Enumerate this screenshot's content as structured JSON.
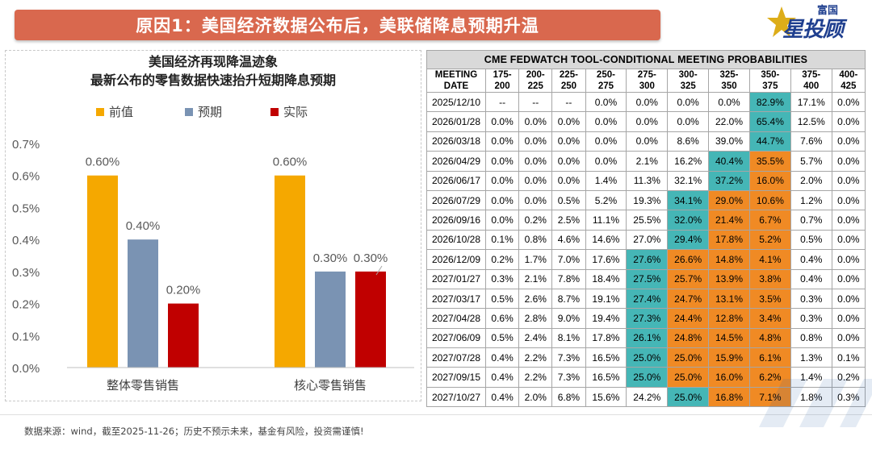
{
  "header": {
    "title": "原因1：美国经济数据公布后，美联储降息预期升温",
    "logo_small": "富国",
    "logo_big": "星投顾"
  },
  "chart_data": {
    "type": "bar",
    "title": "美国经济再现降温迹象",
    "subtitle": "最新公布的零售数据快速抬升短期降息预期",
    "categories": [
      "整体零售销售",
      "核心零售销售"
    ],
    "series": [
      {
        "name": "前值",
        "color": "#f5a800",
        "values": [
          0.6,
          0.6
        ]
      },
      {
        "name": "预期",
        "color": "#7a93b3",
        "values": [
          0.4,
          0.3
        ]
      },
      {
        "name": "实际",
        "color": "#c00000",
        "values": [
          0.2,
          0.3
        ]
      }
    ],
    "data_labels": [
      [
        "0.60%",
        "0.40%",
        "0.20%"
      ],
      [
        "0.60%",
        "0.30%",
        "0.30%"
      ]
    ],
    "ylim": [
      0,
      0.7
    ],
    "yticks": [
      "0.0%",
      "0.1%",
      "0.2%",
      "0.3%",
      "0.4%",
      "0.5%",
      "0.6%",
      "0.7%"
    ],
    "legend_position": "top",
    "grid": false
  },
  "fedwatch": {
    "caption": "CME FEDWATCH TOOL-CONDITIONAL MEETING PROBABILITIES",
    "header_first": [
      "MEETING",
      "DATE"
    ],
    "columns": [
      [
        "175-",
        "200"
      ],
      [
        "200-",
        "225"
      ],
      [
        "225-",
        "250"
      ],
      [
        "250-",
        "275"
      ],
      [
        "275-",
        "300"
      ],
      [
        "300-",
        "325"
      ],
      [
        "325-",
        "350"
      ],
      [
        "350-",
        "375"
      ],
      [
        "375-",
        "400"
      ],
      [
        "400-",
        "425"
      ]
    ],
    "rows": [
      {
        "date": "2025/12/10",
        "values": [
          "--",
          "--",
          "--",
          "0.0%",
          "0.0%",
          "0.0%",
          "0.0%",
          "82.9%",
          "17.1%",
          "0.0%"
        ]
      },
      {
        "date": "2026/01/28",
        "values": [
          "0.0%",
          "0.0%",
          "0.0%",
          "0.0%",
          "0.0%",
          "0.0%",
          "22.0%",
          "65.4%",
          "12.5%",
          "0.0%"
        ]
      },
      {
        "date": "2026/03/18",
        "values": [
          "0.0%",
          "0.0%",
          "0.0%",
          "0.0%",
          "0.0%",
          "8.6%",
          "39.0%",
          "44.7%",
          "7.6%",
          "0.0%"
        ]
      },
      {
        "date": "2026/04/29",
        "values": [
          "0.0%",
          "0.0%",
          "0.0%",
          "0.0%",
          "2.1%",
          "16.2%",
          "40.4%",
          "35.5%",
          "5.7%",
          "0.0%"
        ]
      },
      {
        "date": "2026/06/17",
        "values": [
          "0.0%",
          "0.0%",
          "0.0%",
          "1.4%",
          "11.3%",
          "32.1%",
          "37.2%",
          "16.0%",
          "2.0%",
          "0.0%"
        ]
      },
      {
        "date": "2026/07/29",
        "values": [
          "0.0%",
          "0.0%",
          "0.5%",
          "5.2%",
          "19.3%",
          "34.1%",
          "29.0%",
          "10.6%",
          "1.2%",
          "0.0%"
        ]
      },
      {
        "date": "2026/09/16",
        "values": [
          "0.0%",
          "0.2%",
          "2.5%",
          "11.1%",
          "25.5%",
          "32.0%",
          "21.4%",
          "6.7%",
          "0.7%",
          "0.0%"
        ]
      },
      {
        "date": "2026/10/28",
        "values": [
          "0.1%",
          "0.8%",
          "4.6%",
          "14.6%",
          "27.0%",
          "29.4%",
          "17.8%",
          "5.2%",
          "0.5%",
          "0.0%"
        ]
      },
      {
        "date": "2026/12/09",
        "values": [
          "0.2%",
          "1.7%",
          "7.0%",
          "17.6%",
          "27.6%",
          "26.6%",
          "14.8%",
          "4.1%",
          "0.4%",
          "0.0%"
        ]
      },
      {
        "date": "2027/01/27",
        "values": [
          "0.3%",
          "2.1%",
          "7.8%",
          "18.4%",
          "27.5%",
          "25.7%",
          "13.9%",
          "3.8%",
          "0.4%",
          "0.0%"
        ]
      },
      {
        "date": "2027/03/17",
        "values": [
          "0.5%",
          "2.6%",
          "8.7%",
          "19.1%",
          "27.4%",
          "24.7%",
          "13.1%",
          "3.5%",
          "0.3%",
          "0.0%"
        ]
      },
      {
        "date": "2027/04/28",
        "values": [
          "0.6%",
          "2.8%",
          "9.0%",
          "19.4%",
          "27.3%",
          "24.4%",
          "12.8%",
          "3.4%",
          "0.3%",
          "0.0%"
        ]
      },
      {
        "date": "2027/06/09",
        "values": [
          "0.5%",
          "2.4%",
          "8.1%",
          "17.8%",
          "26.1%",
          "24.8%",
          "14.5%",
          "4.8%",
          "0.8%",
          "0.0%"
        ]
      },
      {
        "date": "2027/07/28",
        "values": [
          "0.4%",
          "2.2%",
          "7.3%",
          "16.5%",
          "25.0%",
          "25.0%",
          "15.9%",
          "6.1%",
          "1.3%",
          "0.1%"
        ]
      },
      {
        "date": "2027/09/15",
        "values": [
          "0.4%",
          "2.2%",
          "7.3%",
          "16.5%",
          "25.0%",
          "25.0%",
          "16.0%",
          "6.2%",
          "1.4%",
          "0.2%"
        ]
      },
      {
        "date": "2027/10/27",
        "values": [
          "0.4%",
          "2.0%",
          "6.8%",
          "15.6%",
          "24.2%",
          "25.0%",
          "16.8%",
          "7.1%",
          "1.8%",
          "0.3%"
        ]
      }
    ],
    "teal_cells": [
      [
        0,
        7
      ],
      [
        1,
        7
      ],
      [
        2,
        7
      ],
      [
        3,
        6
      ],
      [
        4,
        6
      ],
      [
        5,
        5
      ],
      [
        6,
        5
      ],
      [
        7,
        5
      ],
      [
        8,
        4
      ],
      [
        9,
        4
      ],
      [
        10,
        4
      ],
      [
        11,
        4
      ],
      [
        12,
        4
      ],
      [
        13,
        4
      ],
      [
        14,
        4
      ],
      [
        15,
        5
      ]
    ],
    "orange_cells": [
      [
        3,
        7
      ],
      [
        4,
        7
      ],
      [
        5,
        6
      ],
      [
        5,
        7
      ],
      [
        6,
        6
      ],
      [
        6,
        7
      ],
      [
        7,
        6
      ],
      [
        7,
        7
      ],
      [
        8,
        5
      ],
      [
        8,
        6
      ],
      [
        8,
        7
      ],
      [
        9,
        5
      ],
      [
        9,
        6
      ],
      [
        9,
        7
      ],
      [
        10,
        5
      ],
      [
        10,
        6
      ],
      [
        10,
        7
      ],
      [
        11,
        5
      ],
      [
        11,
        6
      ],
      [
        11,
        7
      ],
      [
        12,
        5
      ],
      [
        12,
        6
      ],
      [
        12,
        7
      ],
      [
        13,
        5
      ],
      [
        13,
        6
      ],
      [
        13,
        7
      ],
      [
        14,
        5
      ],
      [
        14,
        6
      ],
      [
        14,
        7
      ],
      [
        15,
        6
      ],
      [
        15,
        7
      ]
    ],
    "colors": {
      "teal": "#45b6b6",
      "orange": "#f08a24",
      "caption_bg": "#d9d9d9"
    }
  },
  "footer": {
    "source": "数据来源：wind，截至2025-11-26；历史不预示未来，基金有风险，投资需谨慎!"
  }
}
